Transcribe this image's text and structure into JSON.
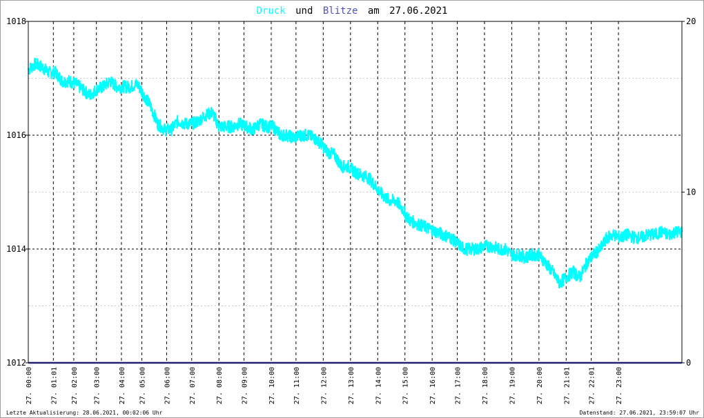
{
  "title": {
    "series1": "Druck",
    "connector": "und",
    "series2": "Blitze",
    "date_prefix": "am",
    "date": "27.06.2021"
  },
  "colors": {
    "druck": "#00ffff",
    "blitze": "#5050c0",
    "baseline": "#202070",
    "grid": "#000000",
    "minor_grid": "#c8c8c8"
  },
  "footer": {
    "left": "Letzte Aktualisierung: 28.06.2021, 00:02:06 Uhr",
    "right": "Datenstand: 27.06.2021, 23:59:07 Uhr"
  },
  "chart_data": {
    "type": "line",
    "x_axis": {
      "min_hour": 0,
      "max_hour": 24,
      "ticks": [
        {
          "hour": 0.0,
          "label": "27. 00:00"
        },
        {
          "hour": 0.92,
          "label": "27. 01:01"
        },
        {
          "hour": 1.67,
          "label": "27. 02:00"
        },
        {
          "hour": 2.5,
          "label": "27. 03:00"
        },
        {
          "hour": 3.42,
          "label": "27. 04:00"
        },
        {
          "hour": 4.17,
          "label": "27. 05:00"
        },
        {
          "hour": 5.08,
          "label": "27. 06:00"
        },
        {
          "hour": 6.0,
          "label": "27. 07:00"
        },
        {
          "hour": 7.0,
          "label": "27. 08:00"
        },
        {
          "hour": 7.92,
          "label": "27. 09:00"
        },
        {
          "hour": 8.92,
          "label": "27. 10:00"
        },
        {
          "hour": 9.83,
          "label": "27. 11:00"
        },
        {
          "hour": 10.83,
          "label": "27. 12:00"
        },
        {
          "hour": 11.83,
          "label": "27. 13:00"
        },
        {
          "hour": 12.83,
          "label": "27. 14:00"
        },
        {
          "hour": 13.83,
          "label": "27. 15:00"
        },
        {
          "hour": 14.83,
          "label": "27. 16:00"
        },
        {
          "hour": 15.75,
          "label": "27. 17:00"
        },
        {
          "hour": 16.75,
          "label": "27. 18:00"
        },
        {
          "hour": 17.75,
          "label": "27. 19:00"
        },
        {
          "hour": 18.75,
          "label": "27. 20:00"
        },
        {
          "hour": 19.75,
          "label": "27. 21:01"
        },
        {
          "hour": 20.67,
          "label": "27. 22:01"
        },
        {
          "hour": 21.67,
          "label": "27. 23:00"
        }
      ]
    },
    "y_left": {
      "min": 1012,
      "max": 1018,
      "ticks": [
        1012,
        1014,
        1016,
        1018
      ]
    },
    "y_right": {
      "min": 0,
      "max": 20,
      "ticks": [
        0,
        10,
        20
      ]
    },
    "series": [
      {
        "name": "Druck",
        "axis": "left",
        "points": [
          [
            0.0,
            1017.15
          ],
          [
            0.25,
            1017.25
          ],
          [
            0.5,
            1017.2
          ],
          [
            0.75,
            1017.1
          ],
          [
            1.0,
            1017.1
          ],
          [
            1.25,
            1016.95
          ],
          [
            1.5,
            1016.95
          ],
          [
            1.75,
            1016.9
          ],
          [
            2.0,
            1016.8
          ],
          [
            2.25,
            1016.7
          ],
          [
            2.5,
            1016.8
          ],
          [
            2.75,
            1016.85
          ],
          [
            3.0,
            1016.95
          ],
          [
            3.25,
            1016.85
          ],
          [
            3.5,
            1016.85
          ],
          [
            3.75,
            1016.85
          ],
          [
            4.0,
            1016.9
          ],
          [
            4.25,
            1016.7
          ],
          [
            4.5,
            1016.5
          ],
          [
            4.75,
            1016.2
          ],
          [
            5.0,
            1016.1
          ],
          [
            5.25,
            1016.1
          ],
          [
            5.5,
            1016.25
          ],
          [
            5.75,
            1016.2
          ],
          [
            6.0,
            1016.2
          ],
          [
            6.25,
            1016.25
          ],
          [
            6.5,
            1016.35
          ],
          [
            6.75,
            1016.4
          ],
          [
            7.0,
            1016.15
          ],
          [
            7.25,
            1016.15
          ],
          [
            7.5,
            1016.15
          ],
          [
            7.75,
            1016.2
          ],
          [
            8.0,
            1016.15
          ],
          [
            8.25,
            1016.1
          ],
          [
            8.5,
            1016.2
          ],
          [
            8.75,
            1016.15
          ],
          [
            9.0,
            1016.15
          ],
          [
            9.25,
            1016.0
          ],
          [
            9.5,
            1016.0
          ],
          [
            9.75,
            1015.95
          ],
          [
            10.0,
            1016.0
          ],
          [
            10.25,
            1016.0
          ],
          [
            10.5,
            1015.95
          ],
          [
            10.75,
            1015.85
          ],
          [
            11.0,
            1015.7
          ],
          [
            11.25,
            1015.65
          ],
          [
            11.5,
            1015.45
          ],
          [
            11.75,
            1015.45
          ],
          [
            12.0,
            1015.35
          ],
          [
            12.25,
            1015.3
          ],
          [
            12.5,
            1015.25
          ],
          [
            12.75,
            1015.1
          ],
          [
            13.0,
            1014.95
          ],
          [
            13.25,
            1014.85
          ],
          [
            13.5,
            1014.85
          ],
          [
            13.75,
            1014.7
          ],
          [
            14.0,
            1014.5
          ],
          [
            14.25,
            1014.45
          ],
          [
            14.5,
            1014.4
          ],
          [
            14.75,
            1014.35
          ],
          [
            15.0,
            1014.3
          ],
          [
            15.25,
            1014.25
          ],
          [
            15.5,
            1014.2
          ],
          [
            15.75,
            1014.1
          ],
          [
            16.0,
            1014.0
          ],
          [
            16.25,
            1014.0
          ],
          [
            16.5,
            1014.0
          ],
          [
            16.75,
            1014.05
          ],
          [
            17.0,
            1014.05
          ],
          [
            17.25,
            1014.0
          ],
          [
            17.5,
            1014.0
          ],
          [
            17.75,
            1013.9
          ],
          [
            18.0,
            1013.9
          ],
          [
            18.25,
            1013.85
          ],
          [
            18.5,
            1013.9
          ],
          [
            18.75,
            1013.9
          ],
          [
            19.0,
            1013.75
          ],
          [
            19.25,
            1013.6
          ],
          [
            19.5,
            1013.4
          ],
          [
            19.75,
            1013.5
          ],
          [
            20.0,
            1013.6
          ],
          [
            20.25,
            1013.5
          ],
          [
            20.5,
            1013.75
          ],
          [
            20.75,
            1013.9
          ],
          [
            21.0,
            1014.0
          ],
          [
            21.25,
            1014.2
          ],
          [
            21.5,
            1014.25
          ],
          [
            21.75,
            1014.2
          ],
          [
            22.0,
            1014.25
          ],
          [
            22.25,
            1014.2
          ],
          [
            22.5,
            1014.2
          ],
          [
            22.75,
            1014.25
          ],
          [
            23.0,
            1014.25
          ],
          [
            23.25,
            1014.3
          ],
          [
            23.5,
            1014.25
          ],
          [
            23.75,
            1014.3
          ],
          [
            24.0,
            1014.3
          ]
        ]
      },
      {
        "name": "Blitze",
        "axis": "right",
        "points": [
          [
            0,
            0
          ],
          [
            24,
            0
          ]
        ]
      }
    ]
  }
}
